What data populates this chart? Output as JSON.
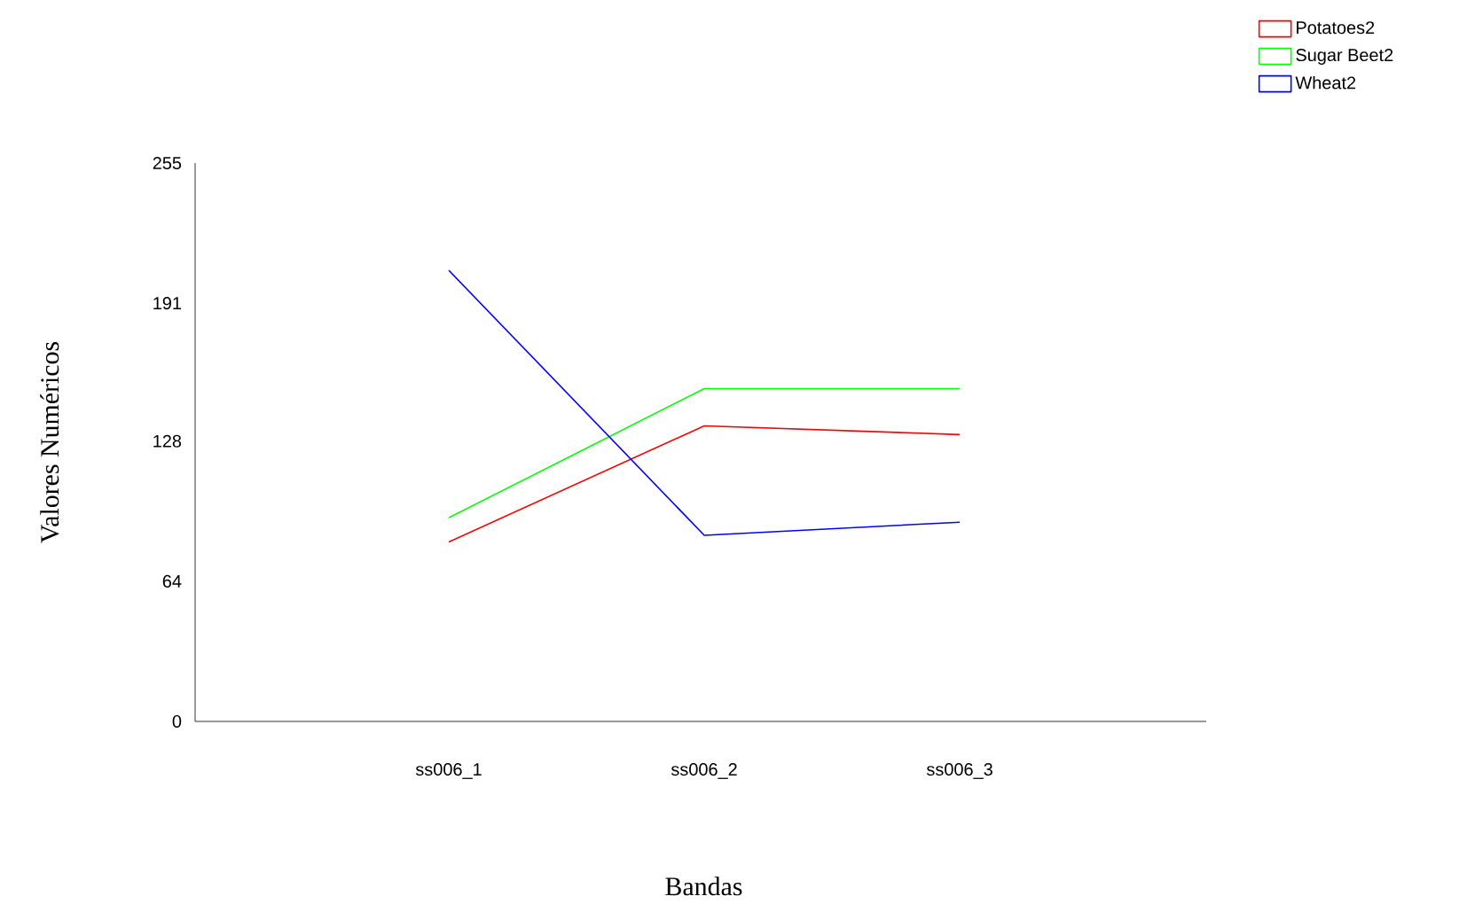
{
  "chart_data": {
    "type": "line",
    "xlabel": "Bandas",
    "ylabel": "Valores Numéricos",
    "categories": [
      "ss006_1",
      "ss006_2",
      "ss006_3"
    ],
    "series": [
      {
        "name": "Potatoes2",
        "color": "#ff0000",
        "values": [
          82,
          135,
          131
        ]
      },
      {
        "name": "Sugar Beet2",
        "color": "#00ff00",
        "values": [
          93,
          152,
          152
        ]
      },
      {
        "name": "Wheat2",
        "color": "#0000ff",
        "values": [
          206,
          85,
          91
        ]
      }
    ],
    "ylim": [
      0,
      255
    ],
    "yticks": [
      0,
      64,
      128,
      191,
      255
    ],
    "grid": false,
    "legend": "top right",
    "marker": "none",
    "line_style": "solid"
  }
}
